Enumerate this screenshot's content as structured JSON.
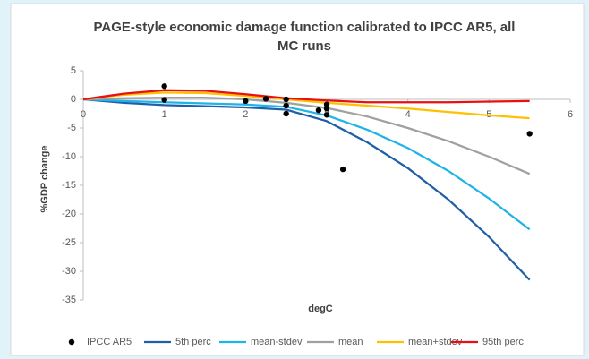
{
  "chart_data": {
    "type": "line",
    "title": [
      "PAGE-style economic damage function calibrated to IPCC AR5, all",
      "MC runs"
    ],
    "x_label": "degC",
    "y_label": "%GDP change",
    "xlim": [
      0,
      6
    ],
    "xticks": [
      0,
      1,
      2,
      3,
      4,
      5,
      6
    ],
    "ylim": [
      -35,
      5
    ],
    "yticks": [
      5,
      0,
      -5,
      -10,
      -15,
      -20,
      -25,
      -30,
      -35
    ],
    "series": [
      {
        "name": "IPCC AR5",
        "type": "scatter",
        "color": "#000000",
        "x": [
          1,
          1,
          2,
          2.25,
          2.5,
          2.5,
          2.5,
          2.9,
          3,
          3,
          3,
          3.2,
          5.5
        ],
        "values": [
          2.3,
          -0.1,
          -0.3,
          0.1,
          0,
          -1.1,
          -2.5,
          -1.9,
          -0.9,
          -1.6,
          -2.7,
          -12.2,
          -6.0
        ]
      },
      {
        "name": "5th perc",
        "type": "line",
        "color": "#1f5fa8",
        "x": [
          0,
          0.5,
          1,
          1.5,
          2,
          2.5,
          3,
          3.5,
          4,
          4.5,
          5,
          5.5
        ],
        "values": [
          0,
          -0.6,
          -1.0,
          -1.2,
          -1.4,
          -1.8,
          -3.8,
          -7.5,
          -12,
          -17.5,
          -24,
          -31.5
        ]
      },
      {
        "name": "mean-stdev",
        "type": "line",
        "color": "#1fb4e8",
        "x": [
          0,
          0.5,
          1,
          1.5,
          2,
          2.5,
          3,
          3.5,
          4,
          4.5,
          5,
          5.5
        ],
        "values": [
          0,
          -0.3,
          -0.5,
          -0.7,
          -0.9,
          -1.3,
          -2.8,
          -5.3,
          -8.5,
          -12.5,
          -17.3,
          -22.7
        ]
      },
      {
        "name": "mean",
        "type": "line",
        "color": "#a0a0a0",
        "x": [
          0,
          0.5,
          1,
          1.5,
          2,
          2.5,
          3,
          3.5,
          4,
          4.5,
          5,
          5.5
        ],
        "values": [
          0,
          0.2,
          0.3,
          0.3,
          0,
          -0.6,
          -1.5,
          -3,
          -5,
          -7.3,
          -10,
          -13
        ]
      },
      {
        "name": "mean+stdev",
        "type": "line",
        "color": "#ffc000",
        "x": [
          0,
          0.5,
          1,
          1.5,
          2,
          2.5,
          3,
          3.5,
          4,
          4.5,
          5,
          5.5
        ],
        "values": [
          0,
          0.8,
          1.2,
          1.1,
          0.6,
          0,
          -0.6,
          -1.1,
          -1.6,
          -2.2,
          -2.8,
          -3.3
        ]
      },
      {
        "name": "95th perc",
        "type": "line",
        "color": "#e81010",
        "x": [
          0,
          0.5,
          1,
          1.5,
          2,
          2.5,
          3,
          3.5,
          4,
          4.5,
          5,
          5.5
        ],
        "values": [
          0,
          1.0,
          1.6,
          1.5,
          0.9,
          0.2,
          -0.2,
          -0.5,
          -0.5,
          -0.5,
          -0.4,
          -0.3
        ]
      }
    ]
  }
}
